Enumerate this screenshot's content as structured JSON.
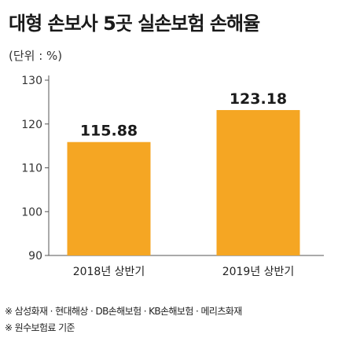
{
  "chart_data": {
    "type": "bar",
    "title": "대형 손보사 5곳 실손보험 손해율",
    "unit_label": "(단위 : %)",
    "categories": [
      "2018년 상반기",
      "2019년 상반기"
    ],
    "values": [
      115.88,
      123.18
    ],
    "value_labels": [
      "115.88",
      "123.18"
    ],
    "yticks": [
      90,
      100,
      110,
      120,
      130
    ],
    "ylim": [
      90,
      130
    ],
    "xlabel": "",
    "ylabel": "",
    "grid": false,
    "bar_color": "#f5a623"
  },
  "footnotes": [
    "※ 삼성화재 · 현대해상 · DB손해보험 · KB손해보험 · 메리츠화재",
    "※ 원수보험료 기준"
  ]
}
